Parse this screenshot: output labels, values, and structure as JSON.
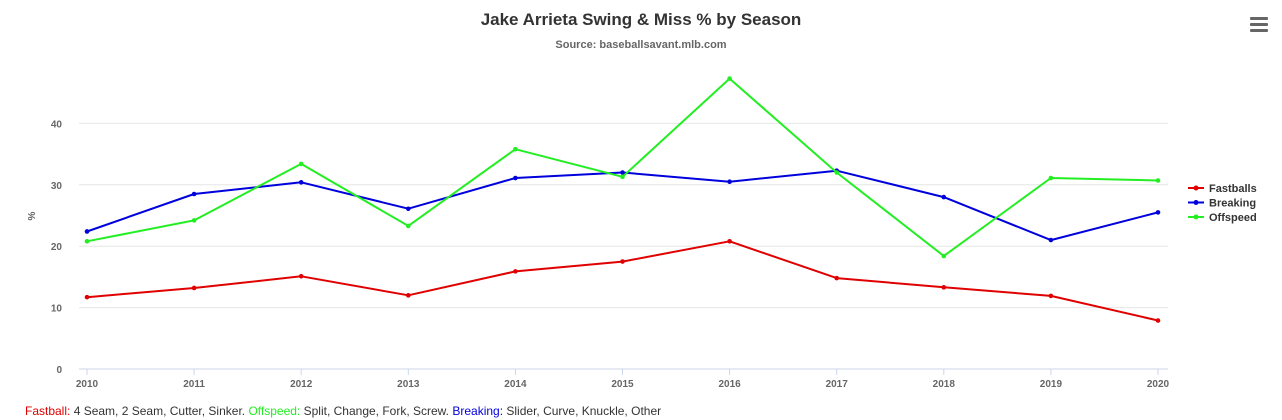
{
  "chart_data": {
    "type": "line",
    "title": "Jake Arrieta Swing & Miss % by Season",
    "subtitle": "Source: baseballsavant.mlb.com",
    "ylabel": "%",
    "xlabel": "",
    "x": [
      "2010",
      "2011",
      "2012",
      "2013",
      "2014",
      "2015",
      "2016",
      "2017",
      "2018",
      "2019",
      "2020"
    ],
    "ylim": [
      0,
      50
    ],
    "yticks": [
      0,
      10,
      20,
      30,
      40
    ],
    "grid": true,
    "legend_position": "right",
    "series": [
      {
        "name": "Fastballs",
        "color": "#e00000",
        "values": [
          11.7,
          13.2,
          15.1,
          12.0,
          15.9,
          17.5,
          20.8,
          14.8,
          13.3,
          11.9,
          7.9
        ]
      },
      {
        "name": "Breaking",
        "color": "#0000dd",
        "values": [
          22.4,
          28.5,
          30.4,
          26.1,
          31.1,
          32.0,
          30.5,
          32.3,
          28.0,
          21.0,
          25.5
        ]
      },
      {
        "name": "Offspeed",
        "color": "#22ee22",
        "values": [
          20.8,
          24.2,
          33.4,
          23.3,
          35.8,
          31.3,
          47.3,
          32.0,
          18.4,
          31.1,
          30.7
        ]
      }
    ]
  },
  "footnote": {
    "fastball_label": "Fastball:",
    "fastball_label_color": "#e00000",
    "fastball_text": " 4 Seam, 2 Seam, Cutter, Sinker. ",
    "offspeed_label": "Offspeed:",
    "offspeed_label_color": "#22ee22",
    "offspeed_text": " Split, Change, Fork, Screw. ",
    "breaking_label": "Breaking:",
    "breaking_label_color": "#0000dd",
    "breaking_text": " Slider, Curve, Knuckle, Other"
  },
  "menu": {
    "icon": "hamburger-menu-icon"
  }
}
